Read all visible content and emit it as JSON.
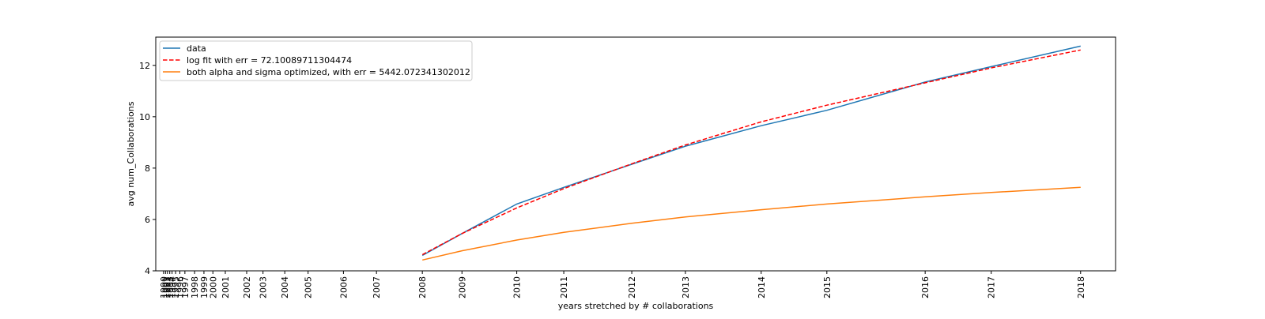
{
  "chart_data": {
    "type": "line",
    "xlabel": "years stretched by # collaborations",
    "ylabel": "avg num_Collaborations",
    "ylim": [
      4,
      13.1
    ],
    "y_ticks": [
      4,
      6,
      8,
      10,
      12
    ],
    "x_ticks": [
      {
        "label": "1990",
        "x": 0.0
      },
      {
        "label": "1991",
        "x": 0.05
      },
      {
        "label": "1992",
        "x": 0.1
      },
      {
        "label": "1993",
        "x": 0.16
      },
      {
        "label": "1994",
        "x": 0.22
      },
      {
        "label": "1995",
        "x": 0.31
      },
      {
        "label": "1996",
        "x": 0.42
      },
      {
        "label": "1997",
        "x": 0.55
      },
      {
        "label": "1998",
        "x": 0.8
      },
      {
        "label": "1999",
        "x": 1.04
      },
      {
        "label": "2000",
        "x": 1.27
      },
      {
        "label": "2001",
        "x": 1.59
      },
      {
        "label": "2002",
        "x": 2.14
      },
      {
        "label": "2003",
        "x": 2.56
      },
      {
        "label": "2004",
        "x": 3.12
      },
      {
        "label": "2005",
        "x": 3.72
      },
      {
        "label": "2006",
        "x": 4.63
      },
      {
        "label": "2007",
        "x": 5.48
      },
      {
        "label": "2008",
        "x": 6.66
      },
      {
        "label": "2009",
        "x": 7.68
      },
      {
        "label": "2010",
        "x": 9.09
      },
      {
        "label": "2011",
        "x": 10.3
      },
      {
        "label": "2012",
        "x": 12.05
      },
      {
        "label": "2013",
        "x": 13.43
      },
      {
        "label": "2014",
        "x": 15.38
      },
      {
        "label": "2015",
        "x": 17.07
      },
      {
        "label": "2016",
        "x": 19.6
      },
      {
        "label": "2017",
        "x": 21.3
      },
      {
        "label": "2018",
        "x": 23.6
      }
    ],
    "xlim": [
      -0.2,
      24.5
    ],
    "grid": false,
    "legend_position": "upper-left",
    "series": [
      {
        "name": "data",
        "color": "#1f77b4",
        "style": "solid",
        "x": [
          6.66,
          7.68,
          9.09,
          10.3,
          12.05,
          13.43,
          15.38,
          17.07,
          19.6,
          21.3,
          23.6
        ],
        "y": [
          4.6,
          5.45,
          6.6,
          7.25,
          8.15,
          8.85,
          9.65,
          10.25,
          11.35,
          11.95,
          12.75
        ]
      },
      {
        "name": "log fit with err = 72.10089711304474",
        "color": "#ff0000",
        "style": "dashed",
        "x": [
          6.66,
          7.68,
          9.09,
          10.3,
          12.05,
          13.43,
          15.38,
          17.07,
          19.6,
          21.3,
          23.6
        ],
        "y": [
          4.63,
          5.45,
          6.45,
          7.2,
          8.17,
          8.9,
          9.8,
          10.45,
          11.32,
          11.9,
          12.6
        ]
      },
      {
        "name": "both alpha and sigma optimized, with err = 5442.072341302012",
        "color": "#ff7f0e",
        "style": "solid",
        "x": [
          6.66,
          7.68,
          9.09,
          10.3,
          12.05,
          13.43,
          15.38,
          17.07,
          19.6,
          21.3,
          23.6
        ],
        "y": [
          4.42,
          4.78,
          5.2,
          5.5,
          5.85,
          6.1,
          6.38,
          6.6,
          6.88,
          7.05,
          7.25
        ]
      }
    ]
  }
}
